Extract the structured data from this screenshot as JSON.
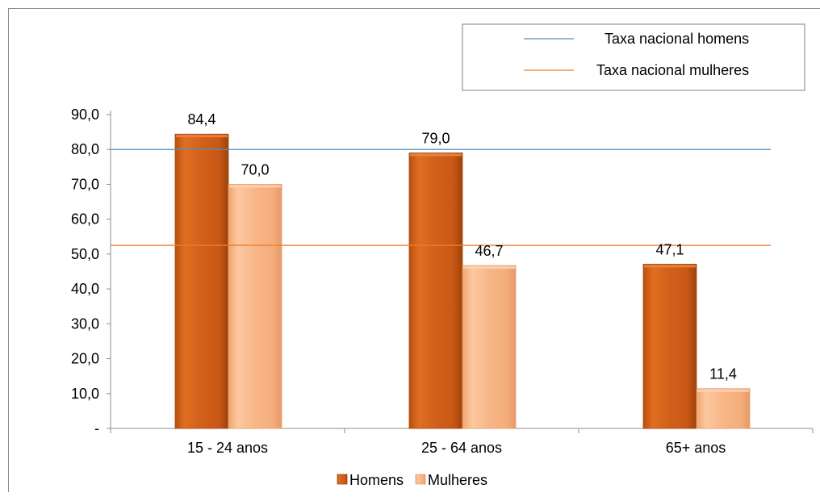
{
  "chart_data": {
    "type": "bar",
    "title": "",
    "xlabel": "",
    "ylabel": "",
    "categories": [
      "15 - 24 anos",
      "25 - 64 anos",
      "65+ anos"
    ],
    "series": [
      {
        "name": "Homens",
        "values": [
          84.4,
          79.0,
          47.1
        ],
        "labels": [
          "84,4",
          "79,0",
          "47,1"
        ],
        "color": "#d2601b"
      },
      {
        "name": "Mulheres",
        "values": [
          70.0,
          46.7,
          11.4
        ],
        "labels": [
          "70,0",
          "46,7",
          "11,4"
        ],
        "color": "#f8b687"
      }
    ],
    "reference_lines": [
      {
        "name": "Taxa  nacional homens",
        "value": 80.0,
        "color": "#4a8fc9"
      },
      {
        "name": "Taxa nacional mulheres",
        "value": 52.5,
        "color": "#ee7d2f"
      }
    ],
    "ylim": [
      0,
      90
    ],
    "yticks": [
      {
        "value": 0,
        "label": "-"
      },
      {
        "value": 10,
        "label": "10,0"
      },
      {
        "value": 20,
        "label": "20,0"
      },
      {
        "value": 30,
        "label": "30,0"
      },
      {
        "value": 40,
        "label": "40,0"
      },
      {
        "value": 50,
        "label": "50,0"
      },
      {
        "value": 60,
        "label": "60,0"
      },
      {
        "value": 70,
        "label": "70,0"
      },
      {
        "value": 80,
        "label": "80,0"
      },
      {
        "value": 90,
        "label": "90,0"
      }
    ],
    "grid": false,
    "legend_position": "bottom",
    "reference_legend_position": "top-right"
  }
}
